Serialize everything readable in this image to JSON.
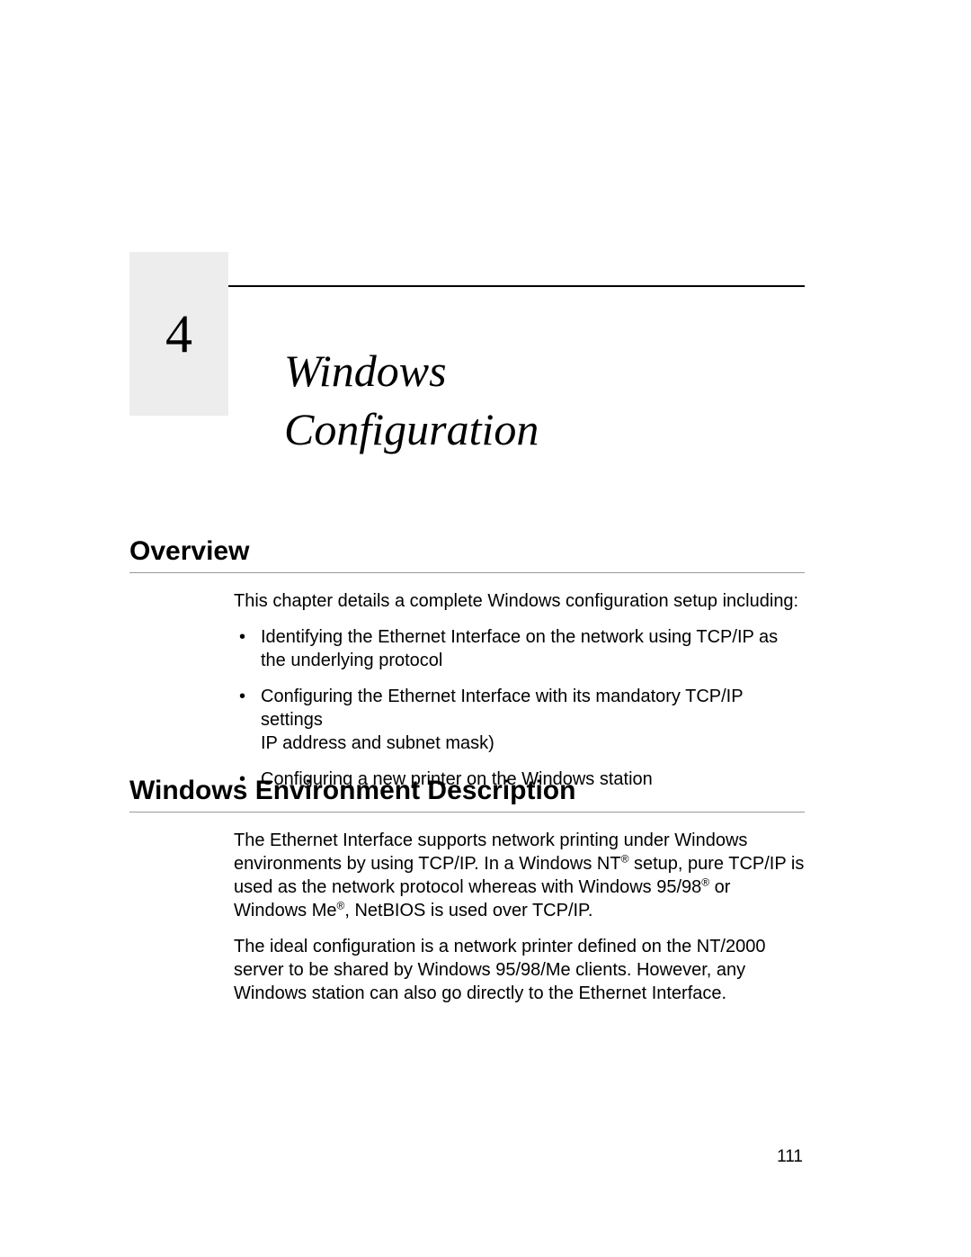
{
  "chapter": {
    "number": "4",
    "title_line1": "Windows",
    "title_line2": "Configuration"
  },
  "sections": {
    "overview": {
      "heading": "Overview",
      "intro": "This chapter details a complete Windows configuration setup including:",
      "bullets": [
        "Identifying the Ethernet Interface on the network using TCP/IP as the underlying protocol",
        "Configuring the Ethernet Interface with its mandatory TCP/IP settings\nIP address and subnet mask)",
        "Configuring a new printer on the Windows station"
      ]
    },
    "environment": {
      "heading": "Windows Environment Description",
      "para1_a": "The Ethernet Interface supports network printing under Windows environments by using TCP/IP. In a Windows NT",
      "para1_b": " setup, pure TCP/IP is used as the network protocol whereas with Windows 95/98",
      "para1_c": " or Windows Me",
      "para1_d": ", NetBIOS is used over TCP/IP.",
      "para2": "The ideal configuration is a network printer defined on the NT/2000 server to be shared by Windows 95/98/Me clients. However, any Windows station can also go directly to the Ethernet Interface."
    }
  },
  "page_number": "111",
  "styles": {
    "page_bg": "#ffffff",
    "rule_top_color": "#000000",
    "chapter_box_bg": "#ededed",
    "section_rule_color": "#9a9a9a",
    "chapter_num_font": "Georgia serif",
    "chapter_num_size_pt": 45,
    "chapter_title_font": "Georgia italic serif",
    "chapter_title_size_pt": 38,
    "section_heading_size_pt": 22,
    "body_size_pt": 15
  }
}
